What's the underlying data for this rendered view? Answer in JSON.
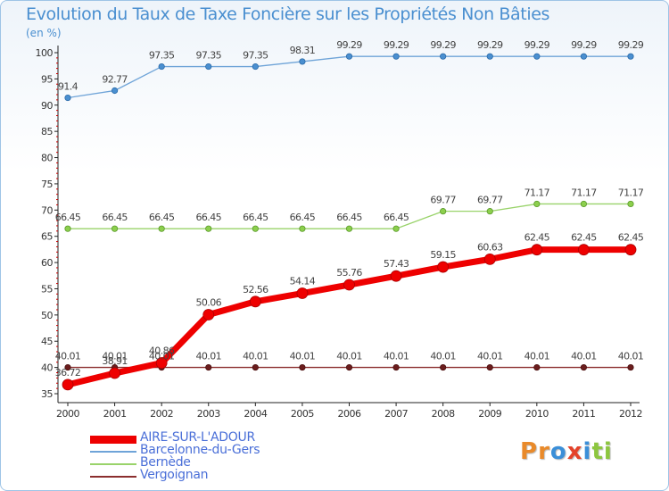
{
  "title": "Evolution du Taux de Taxe Foncière sur les Propriétés Non Bâties",
  "subtitle": "(en %)",
  "logo": [
    "P",
    "r",
    "o",
    "x",
    "i",
    "ti"
  ],
  "chart_data": {
    "type": "line",
    "title": "Evolution du Taux de Taxe Foncière sur les Propriétés Non Bâties",
    "ylabel": "(en %)",
    "ylim": [
      35,
      100
    ],
    "yticks": [
      35,
      40,
      45,
      50,
      55,
      60,
      65,
      70,
      75,
      80,
      85,
      90,
      95,
      100
    ],
    "grid": false,
    "categories": [
      "2000",
      "2001",
      "2002",
      "2003",
      "2004",
      "2005",
      "2006",
      "2007",
      "2008",
      "2009",
      "2010",
      "2011",
      "2012"
    ],
    "series": [
      {
        "name": "AIRE-SUR-L'ADOUR",
        "color": "#ee0000",
        "values": [
          36.72,
          38.91,
          40.86,
          50.06,
          52.56,
          54.14,
          55.76,
          57.43,
          59.15,
          60.63,
          62.45,
          62.45,
          62.45
        ],
        "labels": [
          "36.72",
          "38.91",
          "40.86",
          "50.06",
          "52.56",
          "54.14",
          "55.76",
          "57.43",
          "59.15",
          "60.63",
          "62.45",
          "62.45",
          "62.45"
        ]
      },
      {
        "name": "Barcelonne-du-Gers",
        "color": "#6fa4d8",
        "values": [
          91.4,
          92.77,
          97.35,
          97.35,
          97.35,
          98.31,
          99.29,
          99.29,
          99.29,
          99.29,
          99.29,
          99.29,
          99.29
        ],
        "labels": [
          "91.4",
          "92.77",
          "97.35",
          "97.35",
          "97.35",
          "98.31",
          "99.29",
          "99.29",
          "99.29",
          "99.29",
          "99.29",
          "99.29",
          "99.29"
        ]
      },
      {
        "name": "Bernède",
        "color": "#99d36a",
        "values": [
          66.45,
          66.45,
          66.45,
          66.45,
          66.45,
          66.45,
          66.45,
          66.45,
          69.77,
          69.77,
          71.17,
          71.17,
          71.17
        ],
        "labels": [
          "66.45",
          "66.45",
          "66.45",
          "66.45",
          "66.45",
          "66.45",
          "66.45",
          "66.45",
          "69.77",
          "69.77",
          "71.17",
          "71.17",
          "71.17"
        ]
      },
      {
        "name": "Vergoignan",
        "color": "#8b2e2e",
        "values": [
          40.01,
          40.01,
          40.01,
          40.01,
          40.01,
          40.01,
          40.01,
          40.01,
          40.01,
          40.01,
          40.01,
          40.01,
          40.01
        ],
        "labels": [
          "40.01",
          "40.01",
          "40.01",
          "40.01",
          "40.01",
          "40.01",
          "40.01",
          "40.01",
          "40.01",
          "40.01",
          "40.01",
          "40.01",
          "40.01"
        ]
      }
    ]
  }
}
